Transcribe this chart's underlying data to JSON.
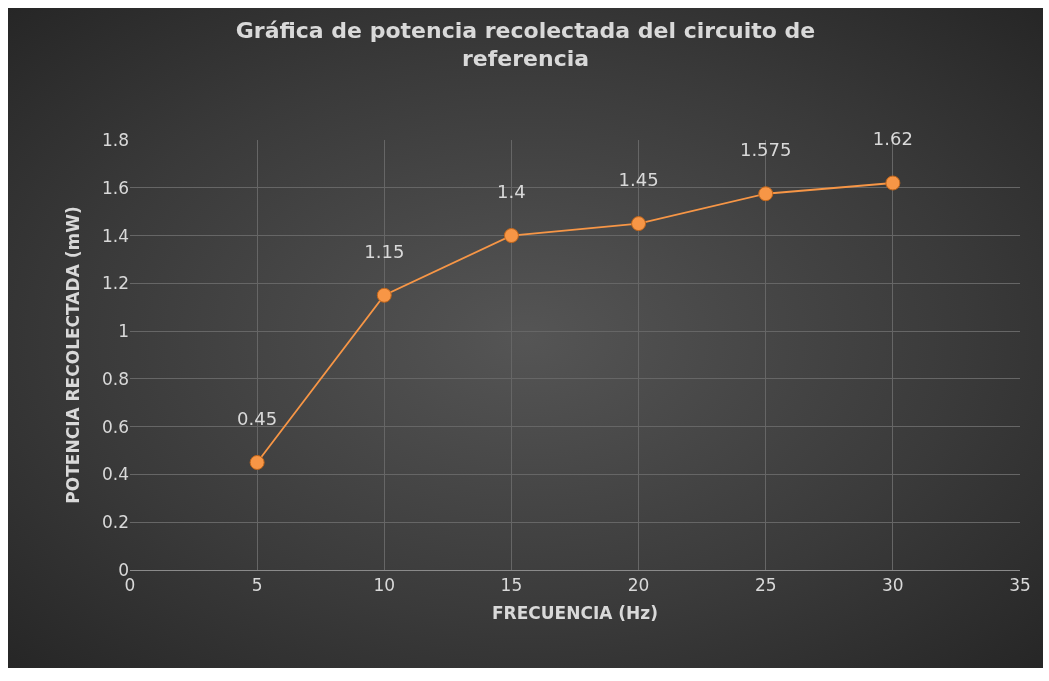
{
  "chart_data": {
    "type": "line",
    "title": "Gráfica de potencia recolectada del circuito de referencia",
    "xlabel": "FRECUENCIA (Hz)",
    "ylabel": "POTENCIA RECOLECTADA (mW)",
    "x": [
      5,
      10,
      15,
      20,
      25,
      30
    ],
    "series": [
      {
        "color": "#f79646",
        "values": [
          0.45,
          1.15,
          1.4,
          1.45,
          1.575,
          1.62
        ]
      }
    ],
    "xlim": [
      0,
      35
    ],
    "xticks": [
      0,
      5,
      10,
      15,
      20,
      25,
      30,
      35
    ],
    "ylim": [
      0,
      1.8
    ],
    "yticks": [
      0,
      0.2,
      0.4,
      0.6,
      0.8,
      1,
      1.2,
      1.4,
      1.6,
      1.8
    ],
    "grid": true,
    "data_labels": true,
    "marker": "circle",
    "line_style": "solid"
  }
}
